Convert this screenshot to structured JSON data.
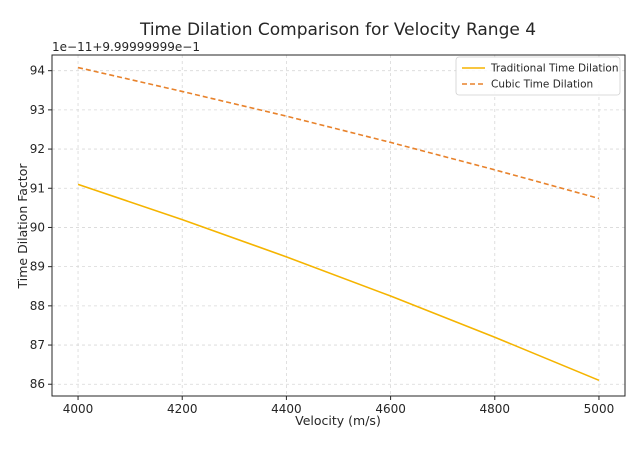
{
  "chart_data": {
    "type": "line",
    "title": "Time Dilation Comparison for Velocity Range 4",
    "xlabel": "Velocity (m/s)",
    "ylabel": "Time Dilation Factor",
    "offset_text": "1e−11+9.99999999e−1",
    "xlim": [
      3950,
      5050
    ],
    "ylim": [
      85.7,
      94.4
    ],
    "x_ticks": [
      4000,
      4200,
      4400,
      4600,
      4800,
      5000
    ],
    "x_tick_labels": [
      "4000",
      "4200",
      "4400",
      "4600",
      "4800",
      "5000"
    ],
    "y_ticks": [
      86,
      87,
      88,
      89,
      90,
      91,
      92,
      93,
      94
    ],
    "y_tick_labels": [
      "86",
      "87",
      "88",
      "89",
      "90",
      "91",
      "92",
      "93",
      "94"
    ],
    "grid": true,
    "legend_position": "top-right",
    "series": [
      {
        "name": "Traditional Time Dilation",
        "color": "#f5b400",
        "style": "solid",
        "x": [
          4000,
          4200,
          4400,
          4600,
          4800,
          5000
        ],
        "y": [
          91.1,
          90.2,
          89.25,
          88.25,
          87.2,
          86.1
        ]
      },
      {
        "name": "Cubic Time Dilation",
        "color": "#e8822b",
        "style": "dashed",
        "x": [
          4000,
          4200,
          4400,
          4600,
          4800,
          5000
        ],
        "y": [
          94.08,
          93.47,
          92.84,
          92.17,
          91.47,
          90.74
        ]
      }
    ]
  }
}
